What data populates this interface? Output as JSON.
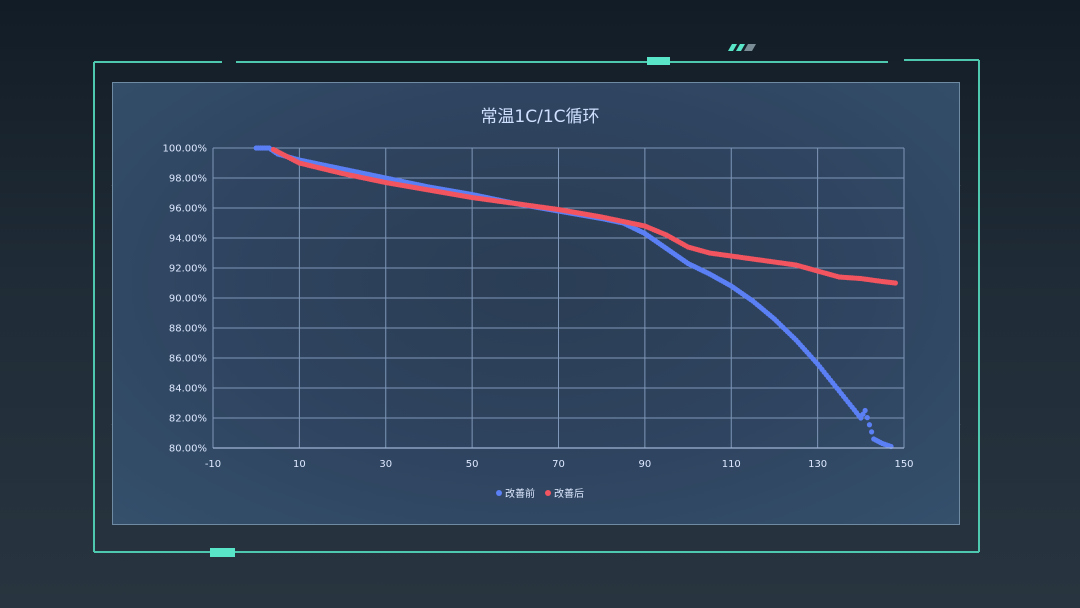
{
  "colors": {
    "before": "#5b7ff5",
    "after": "#f2555f",
    "accent": "#59e6c8",
    "frame": "#4fc8b0"
  },
  "chart_data": {
    "type": "scatter",
    "title": "常温1C/1C循环",
    "xlim": [
      -10,
      150
    ],
    "ylim": [
      80,
      100
    ],
    "x_ticks": [
      "-10",
      "10",
      "30",
      "50",
      "70",
      "90",
      "110",
      "130",
      "150"
    ],
    "y_ticks": [
      "80.00%",
      "82.00%",
      "84.00%",
      "86.00%",
      "88.00%",
      "90.00%",
      "92.00%",
      "94.00%",
      "96.00%",
      "98.00%",
      "100.00%"
    ],
    "grid": true,
    "legend_position": "bottom",
    "series": [
      {
        "name": "改善前",
        "points": [
          [
            0,
            100
          ],
          [
            3,
            100
          ],
          [
            5,
            99.6
          ],
          [
            10,
            99.2
          ],
          [
            20,
            98.6
          ],
          [
            30,
            98.0
          ],
          [
            40,
            97.4
          ],
          [
            50,
            96.9
          ],
          [
            60,
            96.3
          ],
          [
            70,
            95.8
          ],
          [
            80,
            95.3
          ],
          [
            85,
            95.0
          ],
          [
            90,
            94.3
          ],
          [
            95,
            93.3
          ],
          [
            100,
            92.3
          ],
          [
            105,
            91.6
          ],
          [
            110,
            90.8
          ],
          [
            115,
            89.8
          ],
          [
            120,
            88.6
          ],
          [
            125,
            87.2
          ],
          [
            130,
            85.6
          ],
          [
            135,
            83.8
          ],
          [
            140,
            82.0
          ],
          [
            141,
            82.5
          ],
          [
            143,
            80.6
          ],
          [
            145,
            80.3
          ],
          [
            147,
            80.1
          ]
        ]
      },
      {
        "name": "改善后",
        "points": [
          [
            4,
            99.9
          ],
          [
            10,
            99.0
          ],
          [
            20,
            98.3
          ],
          [
            30,
            97.7
          ],
          [
            40,
            97.2
          ],
          [
            50,
            96.7
          ],
          [
            60,
            96.3
          ],
          [
            70,
            95.9
          ],
          [
            80,
            95.4
          ],
          [
            90,
            94.8
          ],
          [
            95,
            94.2
          ],
          [
            100,
            93.4
          ],
          [
            105,
            93.0
          ],
          [
            110,
            92.8
          ],
          [
            115,
            92.6
          ],
          [
            120,
            92.4
          ],
          [
            125,
            92.2
          ],
          [
            130,
            91.8
          ],
          [
            135,
            91.4
          ],
          [
            140,
            91.3
          ],
          [
            145,
            91.1
          ],
          [
            148,
            91.0
          ]
        ]
      }
    ]
  }
}
